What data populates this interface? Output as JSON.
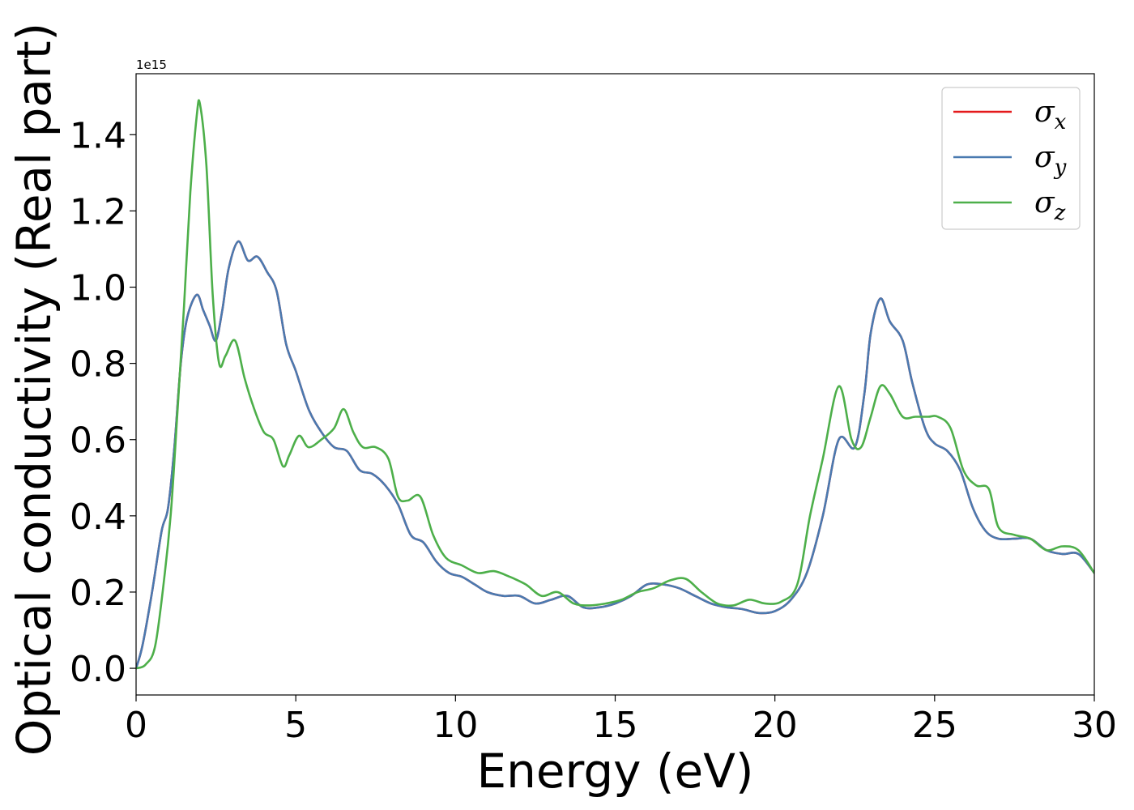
{
  "chart_data": {
    "type": "line",
    "xlabel": "Energy (eV)",
    "ylabel": "Optical conductivity (Real part)",
    "y_offset_text": "1e15",
    "xlim": [
      0,
      30
    ],
    "ylim": [
      -0.07,
      1.56
    ],
    "xticks": [
      0,
      5,
      10,
      15,
      20,
      25,
      30
    ],
    "xtick_labels": [
      "0",
      "5",
      "10",
      "15",
      "20",
      "25",
      "30"
    ],
    "yticks": [
      0.0,
      0.2,
      0.4,
      0.6,
      0.8,
      1.0,
      1.2,
      1.4
    ],
    "ytick_labels": [
      "0.0",
      "0.2",
      "0.4",
      "0.6",
      "0.8",
      "1.0",
      "1.2",
      "1.4"
    ],
    "legend_position": "top-right",
    "grid": false,
    "series": [
      {
        "name": "σx",
        "symbol": "σ",
        "subscript": "x",
        "color": "#e41a1c",
        "x": [
          0,
          0.2,
          0.5,
          0.8,
          1.0,
          1.2,
          1.4,
          1.6,
          1.9,
          2.1,
          2.3,
          2.5,
          2.7,
          2.9,
          3.2,
          3.5,
          3.8,
          4.1,
          4.4,
          4.7,
          5.0,
          5.4,
          5.8,
          6.2,
          6.6,
          7.0,
          7.4,
          7.8,
          8.2,
          8.6,
          9.0,
          9.4,
          9.8,
          10.2,
          10.6,
          11.0,
          11.5,
          12.0,
          12.5,
          13.0,
          13.5,
          14.0,
          14.5,
          15.0,
          15.5,
          16.0,
          16.5,
          17.0,
          17.5,
          18.0,
          18.5,
          19.0,
          19.5,
          20.0,
          20.5,
          21.0,
          21.5,
          22.0,
          22.5,
          22.8,
          23.0,
          23.3,
          23.6,
          24.0,
          24.3,
          24.7,
          25.0,
          25.4,
          25.8,
          26.2,
          26.6,
          27.0,
          27.5,
          28.0,
          28.5,
          29.0,
          29.5,
          30.0
        ],
        "values": [
          0.0,
          0.06,
          0.2,
          0.36,
          0.42,
          0.58,
          0.8,
          0.92,
          0.98,
          0.94,
          0.9,
          0.86,
          0.94,
          1.05,
          1.12,
          1.07,
          1.08,
          1.04,
          0.99,
          0.85,
          0.78,
          0.68,
          0.62,
          0.58,
          0.57,
          0.52,
          0.51,
          0.48,
          0.43,
          0.35,
          0.33,
          0.28,
          0.25,
          0.24,
          0.22,
          0.2,
          0.19,
          0.19,
          0.17,
          0.18,
          0.19,
          0.16,
          0.16,
          0.17,
          0.19,
          0.22,
          0.22,
          0.21,
          0.19,
          0.17,
          0.16,
          0.155,
          0.145,
          0.15,
          0.18,
          0.25,
          0.4,
          0.6,
          0.58,
          0.72,
          0.88,
          0.97,
          0.91,
          0.86,
          0.75,
          0.63,
          0.59,
          0.57,
          0.52,
          0.42,
          0.36,
          0.34,
          0.34,
          0.34,
          0.31,
          0.3,
          0.3,
          0.25
        ]
      },
      {
        "name": "σy",
        "symbol": "σ",
        "subscript": "y",
        "color": "#4a7ab0",
        "x": [
          0,
          0.2,
          0.5,
          0.8,
          1.0,
          1.2,
          1.4,
          1.6,
          1.9,
          2.1,
          2.3,
          2.5,
          2.7,
          2.9,
          3.2,
          3.5,
          3.8,
          4.1,
          4.4,
          4.7,
          5.0,
          5.4,
          5.8,
          6.2,
          6.6,
          7.0,
          7.4,
          7.8,
          8.2,
          8.6,
          9.0,
          9.4,
          9.8,
          10.2,
          10.6,
          11.0,
          11.5,
          12.0,
          12.5,
          13.0,
          13.5,
          14.0,
          14.5,
          15.0,
          15.5,
          16.0,
          16.5,
          17.0,
          17.5,
          18.0,
          18.5,
          19.0,
          19.5,
          20.0,
          20.5,
          21.0,
          21.5,
          22.0,
          22.5,
          22.8,
          23.0,
          23.3,
          23.6,
          24.0,
          24.3,
          24.7,
          25.0,
          25.4,
          25.8,
          26.2,
          26.6,
          27.0,
          27.5,
          28.0,
          28.5,
          29.0,
          29.5,
          30.0
        ],
        "values": [
          0.0,
          0.06,
          0.2,
          0.36,
          0.42,
          0.58,
          0.8,
          0.92,
          0.98,
          0.94,
          0.9,
          0.86,
          0.94,
          1.05,
          1.12,
          1.07,
          1.08,
          1.04,
          0.99,
          0.85,
          0.78,
          0.68,
          0.62,
          0.58,
          0.57,
          0.52,
          0.51,
          0.48,
          0.43,
          0.35,
          0.33,
          0.28,
          0.25,
          0.24,
          0.22,
          0.2,
          0.19,
          0.19,
          0.17,
          0.18,
          0.19,
          0.16,
          0.16,
          0.17,
          0.19,
          0.22,
          0.22,
          0.21,
          0.19,
          0.17,
          0.16,
          0.155,
          0.145,
          0.15,
          0.18,
          0.25,
          0.4,
          0.6,
          0.58,
          0.72,
          0.88,
          0.97,
          0.91,
          0.86,
          0.75,
          0.63,
          0.59,
          0.57,
          0.52,
          0.42,
          0.36,
          0.34,
          0.34,
          0.34,
          0.31,
          0.3,
          0.3,
          0.25
        ]
      },
      {
        "name": "σz",
        "symbol": "σ",
        "subscript": "z",
        "color": "#4daf4a",
        "x": [
          0,
          0.3,
          0.6,
          0.9,
          1.1,
          1.3,
          1.5,
          1.7,
          1.9,
          2.0,
          2.2,
          2.4,
          2.6,
          2.8,
          3.1,
          3.4,
          3.7,
          4.0,
          4.3,
          4.6,
          4.8,
          5.1,
          5.4,
          5.8,
          6.2,
          6.5,
          6.8,
          7.1,
          7.5,
          7.9,
          8.2,
          8.5,
          8.9,
          9.3,
          9.7,
          10.2,
          10.7,
          11.2,
          11.7,
          12.2,
          12.7,
          13.2,
          13.7,
          14.2,
          14.7,
          15.2,
          15.7,
          16.2,
          16.7,
          17.2,
          17.7,
          18.2,
          18.7,
          19.2,
          19.7,
          20.2,
          20.7,
          21.1,
          21.5,
          22.0,
          22.4,
          22.7,
          23.0,
          23.3,
          23.6,
          24.0,
          24.4,
          24.8,
          25.1,
          25.5,
          25.9,
          26.3,
          26.7,
          27.0,
          27.5,
          28.0,
          28.5,
          29.0,
          29.5,
          30.0
        ],
        "values": [
          0.0,
          0.01,
          0.06,
          0.25,
          0.42,
          0.68,
          0.95,
          1.25,
          1.45,
          1.48,
          1.32,
          0.98,
          0.8,
          0.82,
          0.86,
          0.76,
          0.68,
          0.62,
          0.6,
          0.53,
          0.56,
          0.61,
          0.58,
          0.6,
          0.63,
          0.68,
          0.62,
          0.58,
          0.58,
          0.55,
          0.45,
          0.44,
          0.45,
          0.35,
          0.29,
          0.27,
          0.25,
          0.255,
          0.24,
          0.22,
          0.19,
          0.2,
          0.17,
          0.165,
          0.17,
          0.18,
          0.2,
          0.21,
          0.23,
          0.235,
          0.2,
          0.17,
          0.165,
          0.18,
          0.17,
          0.175,
          0.22,
          0.4,
          0.55,
          0.74,
          0.6,
          0.58,
          0.66,
          0.74,
          0.72,
          0.66,
          0.66,
          0.66,
          0.66,
          0.63,
          0.52,
          0.48,
          0.47,
          0.37,
          0.35,
          0.34,
          0.31,
          0.32,
          0.31,
          0.25
        ]
      }
    ]
  }
}
